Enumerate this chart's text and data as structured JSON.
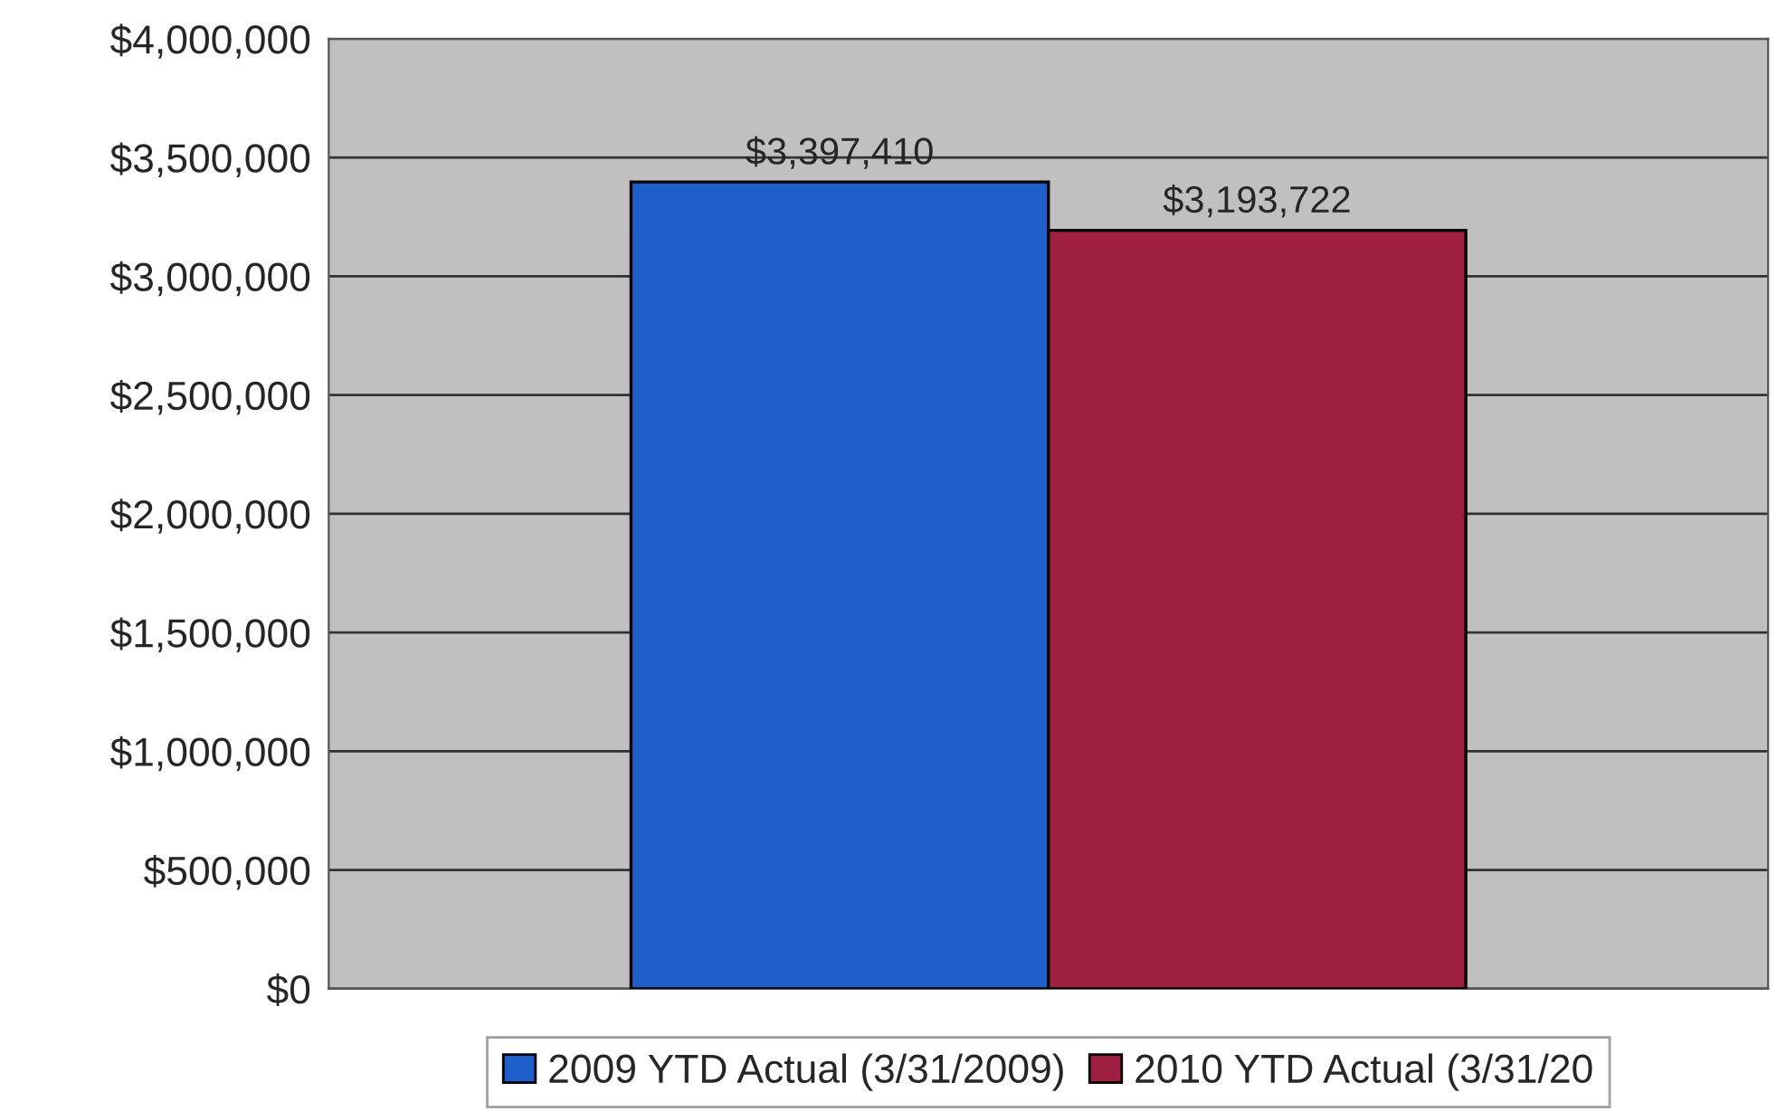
{
  "chart_data": {
    "type": "bar",
    "categories": [
      null
    ],
    "series": [
      {
        "name": "2009 YTD Actual (3/31/2009)",
        "color": "#1e5fcc",
        "values": [
          3397410
        ],
        "value_labels": [
          "$3,397,410"
        ]
      },
      {
        "name": "2010 YTD Actual (3/31/20",
        "color": "#9e1f3f",
        "values": [
          3193722
        ],
        "value_labels": [
          "$3,193,722"
        ]
      }
    ],
    "ylim": [
      0,
      4000000
    ],
    "yticks": [
      {
        "value": 0,
        "label": "$0"
      },
      {
        "value": 500000,
        "label": "$500,000"
      },
      {
        "value": 1000000,
        "label": "$1,000,000"
      },
      {
        "value": 1500000,
        "label": "$1,500,000"
      },
      {
        "value": 2000000,
        "label": "$2,000,000"
      },
      {
        "value": 2500000,
        "label": "$2,500,000"
      },
      {
        "value": 3000000,
        "label": "$3,000,000"
      },
      {
        "value": 3500000,
        "label": "$3,500,000"
      },
      {
        "value": 4000000,
        "label": "$4,000,000"
      }
    ],
    "grid": "y",
    "legend": "bottom"
  }
}
